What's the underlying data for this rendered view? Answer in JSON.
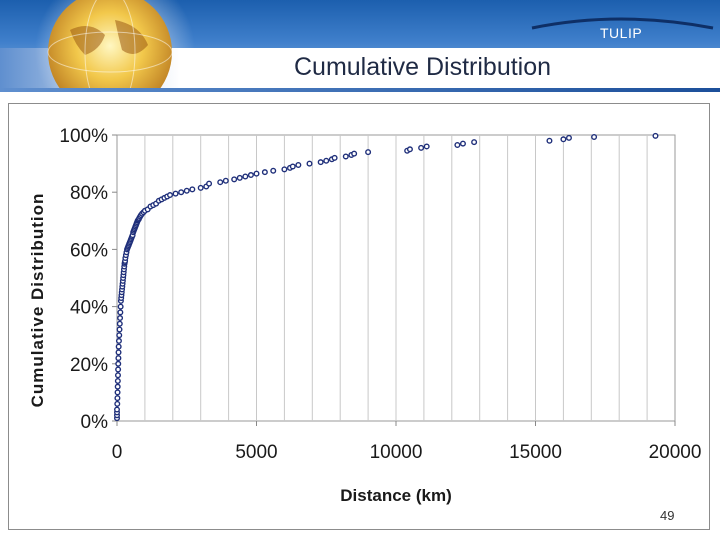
{
  "header": {
    "brand": "TULIP",
    "title": "Cumulative Distribution",
    "accent_color": "#1c5fae",
    "logo_icon": "globe-icon"
  },
  "footer": {
    "page_number": "49"
  },
  "chart_data": {
    "type": "scatter",
    "title": "",
    "xlabel": "Distance (km)",
    "ylabel": "Cumulative Distribution",
    "xlim": [
      0,
      20000
    ],
    "ylim": [
      0,
      1
    ],
    "x_ticks": [
      0,
      5000,
      10000,
      15000,
      20000
    ],
    "x_tick_labels": [
      "0",
      "5000",
      "10000",
      "15000",
      "20000"
    ],
    "y_ticks": [
      0,
      0.2,
      0.4,
      0.6,
      0.8,
      1.0
    ],
    "y_tick_labels": [
      "0%",
      "20%",
      "40%",
      "60%",
      "80%",
      "100%"
    ],
    "grid": "vertical",
    "legend": "none",
    "marker_color": "#1f2f7a",
    "series": [
      {
        "x": [
          0,
          0,
          0,
          0,
          10,
          15,
          20,
          25,
          30,
          35,
          40,
          45,
          50,
          55,
          60,
          70,
          80,
          90,
          100,
          110,
          120,
          130,
          140,
          150,
          160,
          170,
          180,
          190,
          200,
          210,
          220,
          230,
          240,
          250,
          260,
          270,
          280,
          290,
          300,
          320,
          340,
          360,
          380,
          400,
          420,
          440,
          460,
          480,
          500,
          520,
          540,
          560,
          580,
          600,
          620,
          640,
          660,
          680,
          700,
          720,
          740,
          760,
          780,
          800,
          830,
          860,
          900,
          950,
          1000,
          1100,
          1200,
          1300,
          1400,
          1500,
          1600,
          1700,
          1800,
          1900,
          2100,
          2300,
          2500,
          2700,
          3000,
          3200,
          3300,
          3700,
          3900,
          4200,
          4400,
          4600,
          4800,
          5000,
          5300,
          5600,
          6000,
          6200,
          6300,
          6500,
          6900,
          7300,
          7500,
          7700,
          7800,
          8200,
          8400,
          8500,
          9000,
          10400,
          10500,
          10900,
          11100,
          12200,
          12400,
          12800,
          15500,
          16000,
          16200,
          17100,
          19300
        ],
        "y": [
          0.01,
          0.02,
          0.03,
          0.04,
          0.06,
          0.08,
          0.1,
          0.12,
          0.14,
          0.16,
          0.18,
          0.2,
          0.22,
          0.24,
          0.26,
          0.28,
          0.3,
          0.32,
          0.34,
          0.36,
          0.38,
          0.4,
          0.42,
          0.43,
          0.44,
          0.45,
          0.46,
          0.47,
          0.48,
          0.49,
          0.5,
          0.51,
          0.52,
          0.53,
          0.54,
          0.55,
          0.555,
          0.56,
          0.57,
          0.58,
          0.59,
          0.6,
          0.605,
          0.61,
          0.615,
          0.62,
          0.625,
          0.63,
          0.635,
          0.64,
          0.645,
          0.65,
          0.66,
          0.665,
          0.67,
          0.675,
          0.68,
          0.685,
          0.69,
          0.695,
          0.7,
          0.703,
          0.706,
          0.71,
          0.715,
          0.72,
          0.725,
          0.73,
          0.735,
          0.74,
          0.75,
          0.755,
          0.76,
          0.77,
          0.775,
          0.78,
          0.785,
          0.79,
          0.795,
          0.8,
          0.805,
          0.81,
          0.815,
          0.82,
          0.83,
          0.835,
          0.84,
          0.845,
          0.85,
          0.855,
          0.86,
          0.865,
          0.87,
          0.875,
          0.88,
          0.885,
          0.89,
          0.895,
          0.9,
          0.905,
          0.91,
          0.915,
          0.92,
          0.925,
          0.93,
          0.935,
          0.94,
          0.945,
          0.95,
          0.955,
          0.96,
          0.965,
          0.97,
          0.975,
          0.98,
          0.985,
          0.99,
          0.993,
          0.997
        ]
      }
    ]
  }
}
